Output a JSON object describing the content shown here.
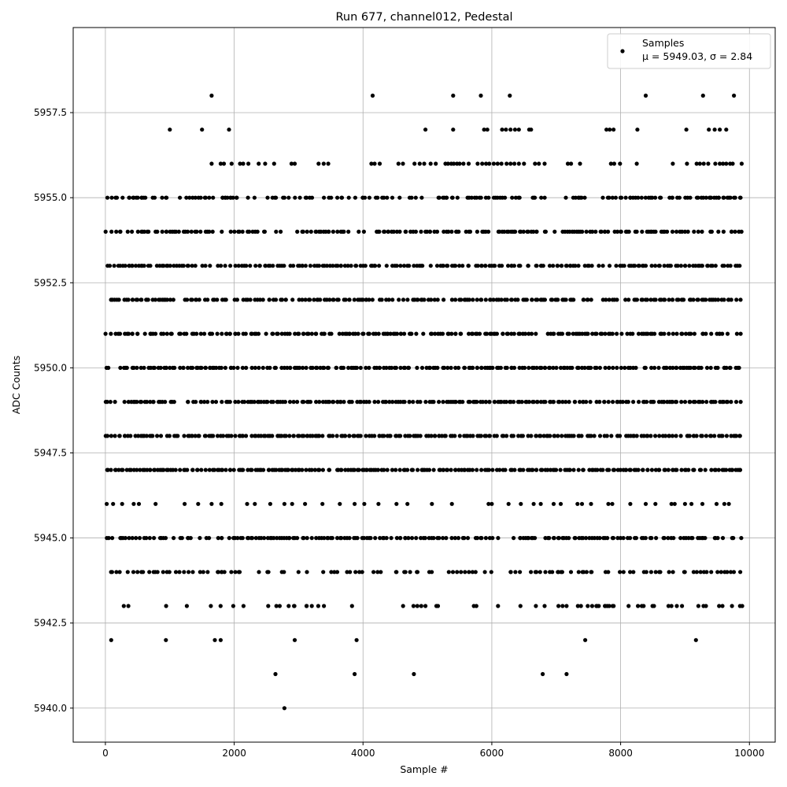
{
  "chart_data": {
    "type": "scatter",
    "title": "Run 677, channel012, Pedestal",
    "xlabel": "Sample #",
    "ylabel": "ADC Counts",
    "xlim": [
      -500,
      10400
    ],
    "ylim": [
      5939.0,
      5960.0
    ],
    "xticks": [
      0,
      2000,
      4000,
      6000,
      8000,
      10000
    ],
    "xtick_labels": [
      "0",
      "2000",
      "4000",
      "6000",
      "8000",
      "10000"
    ],
    "yticks": [
      5940.0,
      5942.5,
      5945.0,
      5947.5,
      5950.0,
      5952.5,
      5955.0,
      5957.5
    ],
    "ytick_labels": [
      "5940.0",
      "5942.5",
      "5945.0",
      "5947.5",
      "5950.0",
      "5952.5",
      "5955.0",
      "5957.5"
    ],
    "grid": true,
    "legend": {
      "position": "top-right",
      "label": "Samples",
      "stats": "μ = 5949.03, σ = 2.84"
    },
    "marker_color": "#000000",
    "series": [
      {
        "name": "Samples",
        "x_range": [
          0,
          9900
        ],
        "levels": [
          {
            "y": 5958,
            "x": [
              1650,
              4150,
              5400,
              5830,
              6280,
              8390,
              9280,
              9760
            ]
          },
          {
            "y": 5957,
            "x": [
              1000,
              1500,
              1920,
              4970,
              5400,
              5880,
              5930,
              6160,
              6220,
              6290,
              6360,
              6420,
              6580,
              6610,
              7780,
              7830,
              7890,
              8260,
              9020,
              9370,
              9460,
              9540,
              9640
            ]
          },
          {
            "y": 5956,
            "x": [
              1650,
              1790,
              1840,
              1960,
              2090,
              2140,
              2220,
              2380,
              2480,
              2620,
              2890,
              2940,
              3310,
              3390,
              3460,
              4130,
              4180,
              4260,
              4550,
              4620,
              4800,
              4880,
              4950,
              5050,
              5130,
              5280,
              5320,
              5370,
              5410,
              5460,
              5500,
              5560,
              5640,
              5780,
              5850,
              5910,
              5960,
              6030,
              6090,
              6150,
              6230,
              6290,
              6350,
              6420,
              6500,
              6670,
              6730,
              6820,
              7180,
              7230,
              7370,
              7850,
              7900,
              7990,
              8250,
              8810,
              9030,
              9180,
              9230,
              9290,
              9360,
              9470,
              9540,
              9590,
              9640,
              9700,
              9740,
              9880
            ]
          },
          {
            "y": 5955,
            "x": [
              1820,
              1860,
              2040,
              3020,
              3880,
              4200,
              5300,
              7350,
              7820,
              9040,
              9380
            ],
            "fill": [
              0.42,
              0.93
            ]
          },
          {
            "y": 5954,
            "fill": [
              0.58,
              0.94
            ]
          },
          {
            "y": 5953,
            "fill": [
              0.72,
              0.97
            ]
          },
          {
            "y": 5952,
            "fill": [
              0.78,
              0.98
            ]
          },
          {
            "y": 5951,
            "fill": [
              0.82,
              0.98
            ]
          },
          {
            "y": 5950,
            "fill": [
              0.84,
              0.99
            ]
          },
          {
            "y": 5949,
            "fill": [
              0.9,
              1.0
            ]
          },
          {
            "y": 5948,
            "fill": [
              0.94,
              1.0
            ]
          },
          {
            "y": 5947,
            "fill": [
              0.97,
              1.0
            ]
          },
          {
            "y": 5946,
            "x": [
              20,
              120,
              260,
              440,
              520,
              780,
              1230,
              1440,
              1650,
              1800,
              2200,
              2320,
              2560,
              2780,
              2900,
              3100,
              3370,
              3640,
              3870,
              4020,
              4240,
              4520,
              4690,
              5070,
              5380,
              5950,
              6000,
              6260,
              6450,
              6650,
              6760,
              6960,
              7070,
              7330,
              7400,
              7540,
              7810,
              7870,
              8150,
              8390,
              8540,
              8790,
              8840,
              9000,
              9100,
              9270,
              9490,
              9610,
              9680
            ]
          },
          {
            "y": 5945,
            "fill": [
              0.5,
              0.95
            ]
          },
          {
            "y": 5944,
            "fill": [
              0.3,
              0.75
            ]
          },
          {
            "y": 5943,
            "fill": [
              0.2,
              0.7
            ]
          },
          {
            "y": 5942,
            "x": [
              90,
              940,
              1700,
              1790,
              2940,
              3900,
              7450,
              9170
            ]
          },
          {
            "y": 5941,
            "x": [
              2640,
              3870,
              4790,
              6790,
              7160
            ]
          },
          {
            "y": 5940,
            "x": [
              2780
            ]
          }
        ]
      }
    ]
  }
}
